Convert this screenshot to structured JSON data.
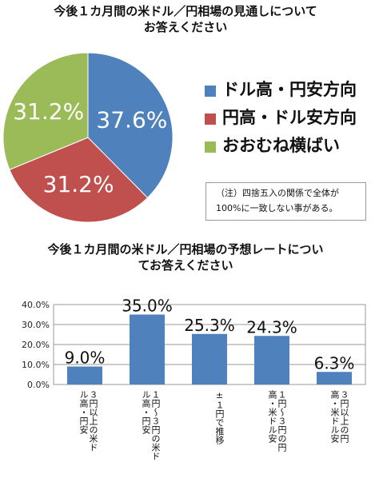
{
  "pie_title": [
    "今後１カ月間の米ドル／円相場の見通しについて",
    "お答えください"
  ],
  "bar_title": [
    "今後１カ月間の米ドル／円相場の予想レートについ",
    "てお答えください"
  ],
  "note": [
    "（注）四捨五入の関係で全体が",
    "100%に一致しない事がある。"
  ],
  "colors": {
    "blue": "#4f81bd",
    "red": "#c0504d",
    "green": "#9bbb59"
  },
  "chart_data": [
    {
      "type": "pie",
      "slices": [
        {
          "label": "ドル高・円安方向",
          "value": 37.6,
          "text": "37.6%",
          "color": "#4f81bd"
        },
        {
          "label": "円高・ドル安方向",
          "value": 31.2,
          "text": "31.2%",
          "color": "#c0504d"
        },
        {
          "label": "おおむね横ばい",
          "value": 31.2,
          "text": "31.2%",
          "color": "#9bbb59"
        }
      ],
      "legend_position": "right"
    },
    {
      "type": "bar",
      "categories": [
        [
          "３円以上の米ド",
          "ル高・円安"
        ],
        [
          "１円～３円の米ド",
          "ル高・円安"
        ],
        [
          "±１円で推移"
        ],
        [
          "１円～３円の円",
          "高・米ドル安"
        ],
        [
          "３円以上の円",
          "高・米ドル安"
        ]
      ],
      "values": [
        9.0,
        35.0,
        25.3,
        24.3,
        6.3
      ],
      "value_labels": [
        "9.0%",
        "35.0%",
        "25.3%",
        "24.3%",
        "6.3%"
      ],
      "yticks": [
        "0.0%",
        "10.0%",
        "20.0%",
        "30.0%",
        "40.0%"
      ],
      "ylim": [
        0,
        40
      ],
      "color": "#4f81bd"
    }
  ]
}
